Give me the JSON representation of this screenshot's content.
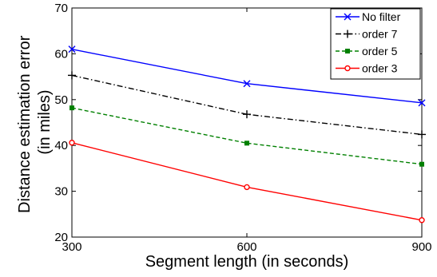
{
  "chart_data": {
    "type": "line",
    "title": "",
    "xlabel": "Segment length (in seconds)",
    "ylabel_lines": [
      "Distance estimation error",
      "(in miles)"
    ],
    "x": [
      300,
      600,
      900
    ],
    "x_ticks": [
      "300",
      "600",
      "900"
    ],
    "y_ticks": [
      "20",
      "30",
      "40",
      "50",
      "60",
      "70"
    ],
    "y_tick_values": [
      20,
      30,
      40,
      50,
      60,
      70
    ],
    "xlim": [
      300,
      900
    ],
    "ylim": [
      20,
      70
    ],
    "grid": false,
    "legend_position": "top-right",
    "series": [
      {
        "name": "No filter",
        "values": [
          61.0,
          53.5,
          49.3
        ],
        "color": "#0000ff",
        "marker": "x",
        "dash": "solid"
      },
      {
        "name": "order 7",
        "values": [
          55.3,
          46.8,
          42.4
        ],
        "color": "#000000",
        "marker": "plus",
        "dash": "dashdot"
      },
      {
        "name": "order 5",
        "values": [
          48.2,
          40.5,
          35.9
        ],
        "color": "#008000",
        "marker": "square",
        "dash": "dashed"
      },
      {
        "name": "order 3",
        "values": [
          40.6,
          30.9,
          23.7
        ],
        "color": "#ff0000",
        "marker": "circle",
        "dash": "solid"
      }
    ]
  }
}
